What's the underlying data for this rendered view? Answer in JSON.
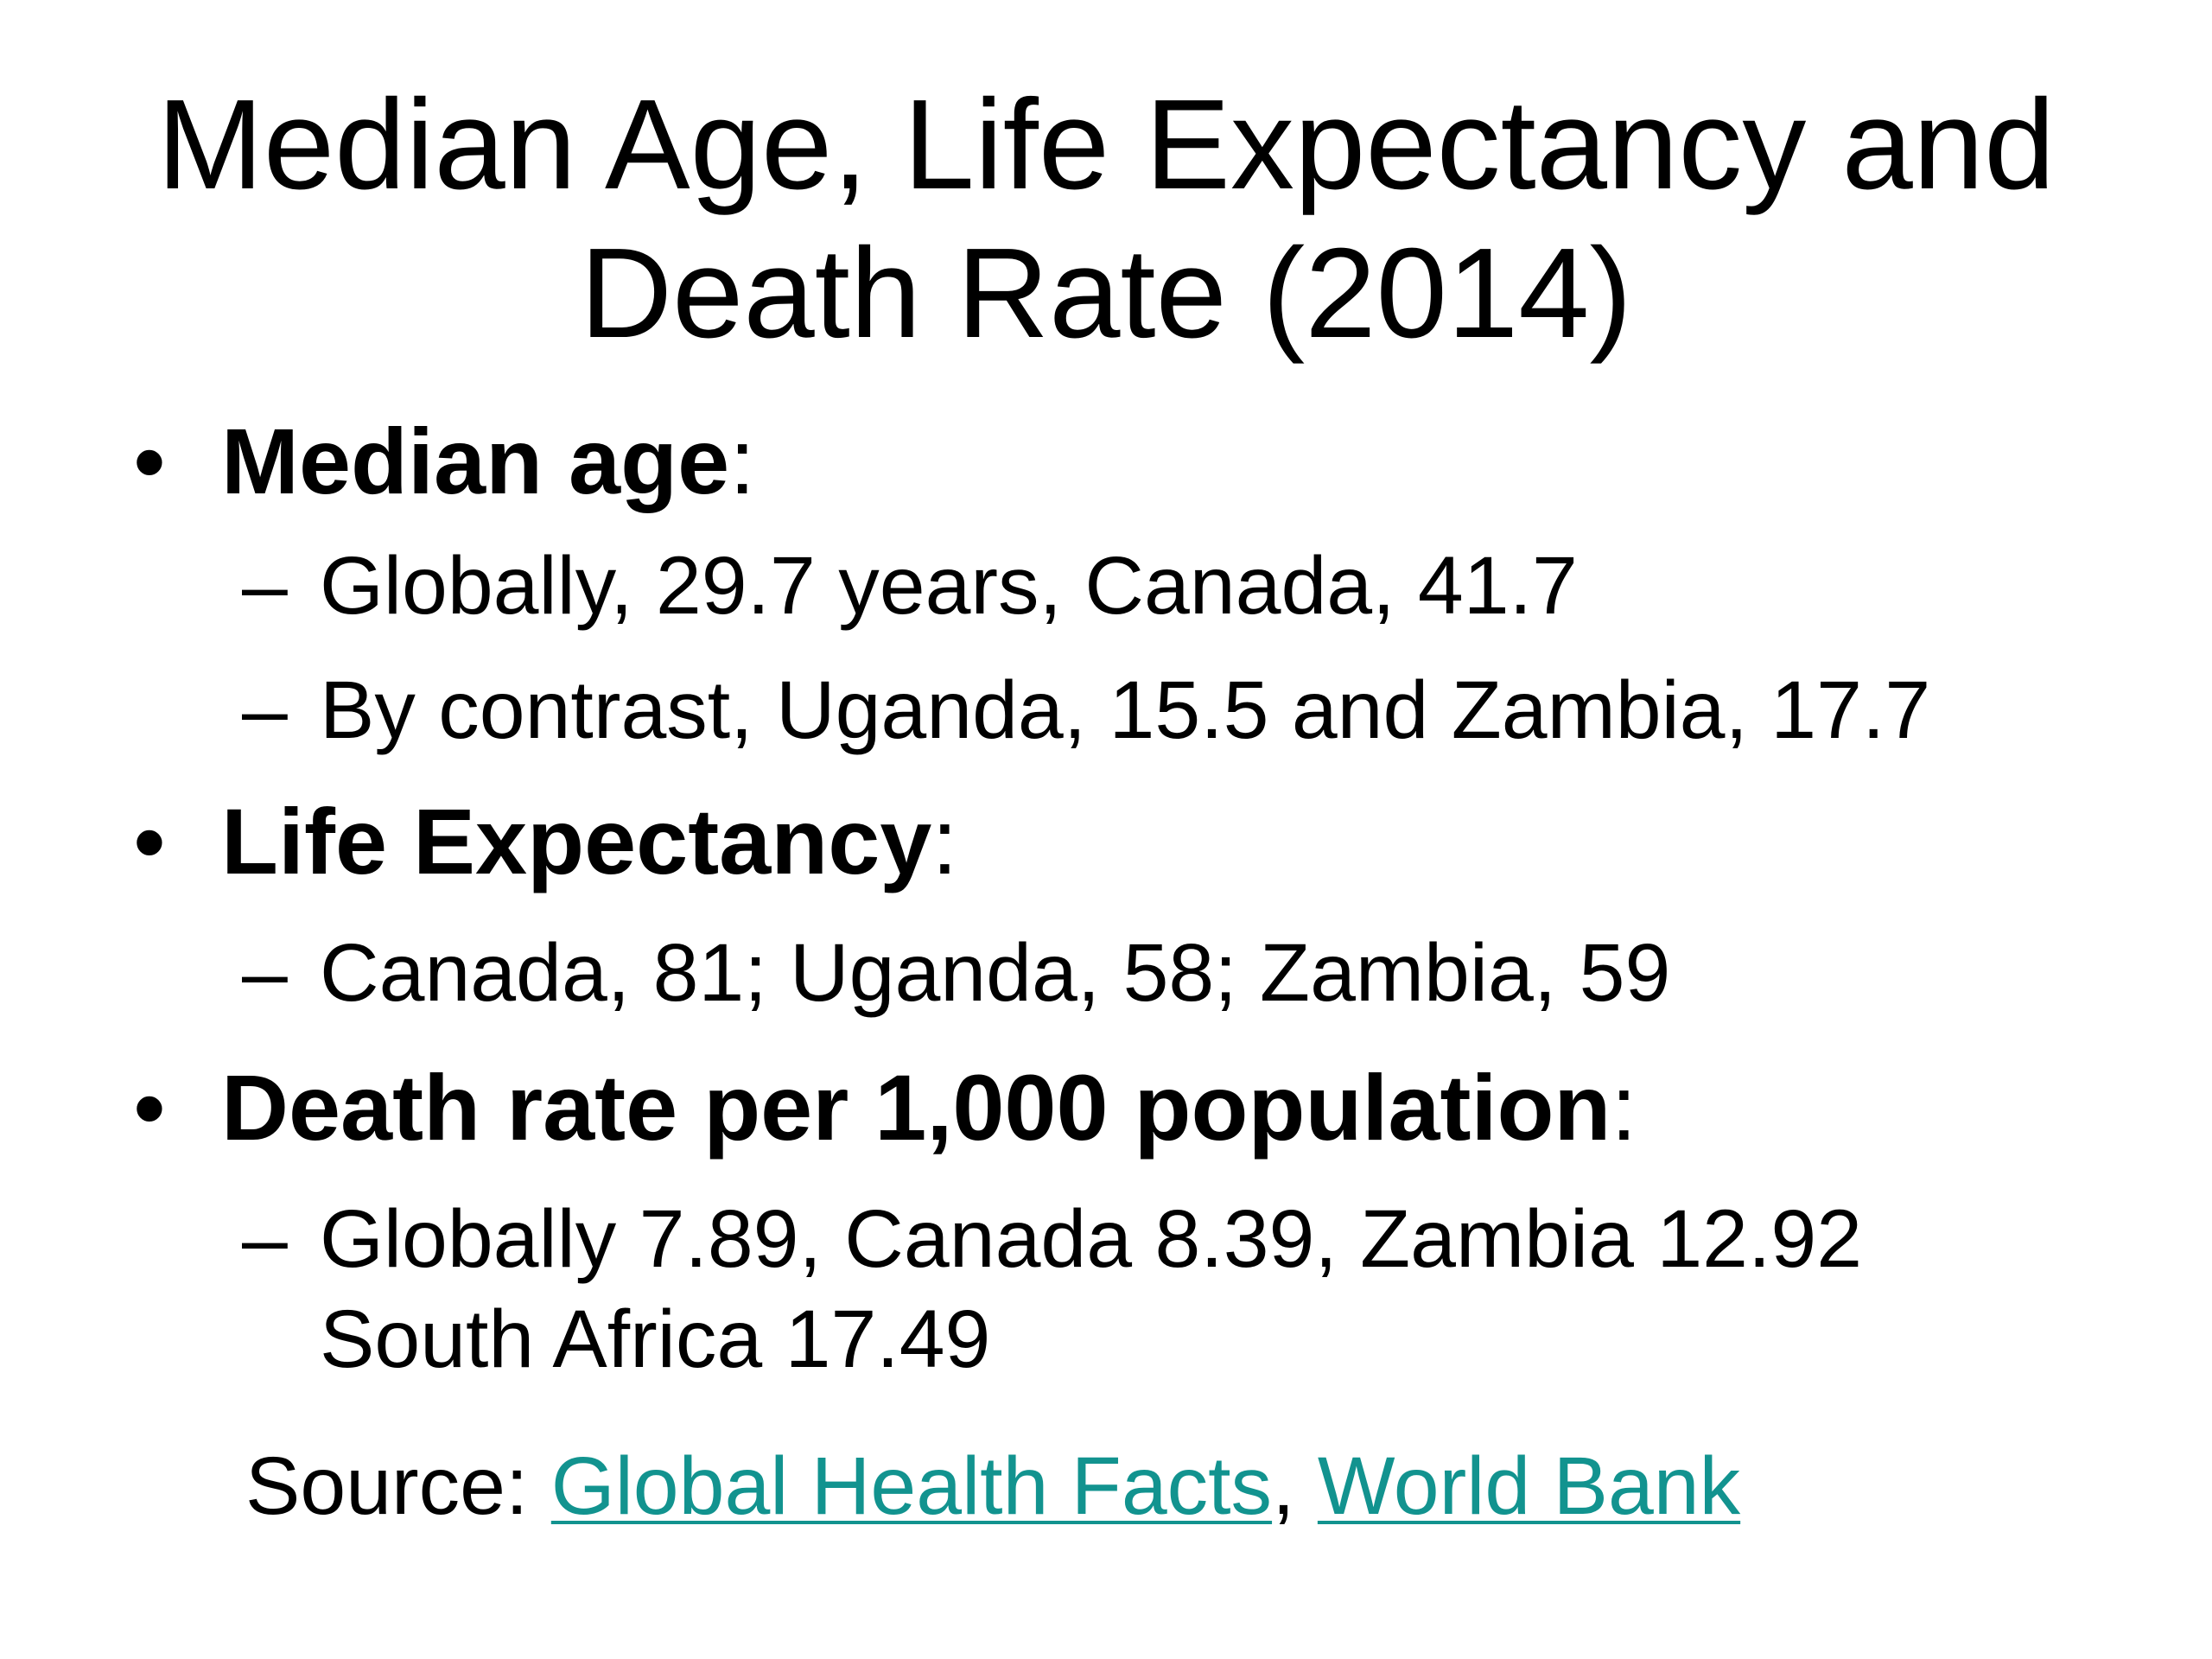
{
  "title": {
    "line1": "Median Age, Life Expectancy and",
    "line2": "Death Rate (2014)"
  },
  "sections": [
    {
      "bullet": "•",
      "term": "Median age",
      "colon": ":",
      "items": [
        "Globally, 29.7 years, Canada, 41.7",
        "By contrast, Uganda, 15.5 and Zambia, 17.7"
      ]
    },
    {
      "bullet": "•",
      "term": "Life Expectancy",
      "colon": ":",
      "items": [
        "Canada, 81; Uganda, 58; Zambia, 59"
      ]
    },
    {
      "bullet": "•",
      "term": "Death rate per 1,000 population",
      "colon": ":",
      "items": [
        "Globally 7.89, Canada 8.39, Zambia 12.92",
        "South Africa 17.49"
      ]
    }
  ],
  "sub_dash": "–",
  "source": {
    "label": "Source: ",
    "link1": "Global Health Facts",
    "separator": ", ",
    "link2": "World Bank"
  },
  "colors": {
    "text": "#000000",
    "link": "#12938f",
    "background": "#ffffff"
  }
}
